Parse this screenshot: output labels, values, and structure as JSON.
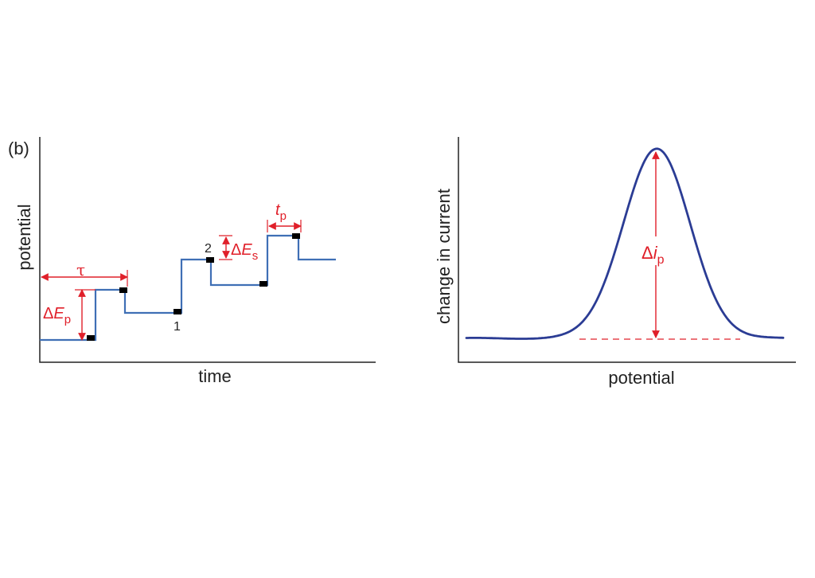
{
  "panel_label": "(b)",
  "colors": {
    "waveform": "#3f6fb5",
    "peak_curve": "#2b3c94",
    "annotation": "#e0202a",
    "axis": "#222222",
    "sample_marker": "#000000"
  },
  "left_plot": {
    "xlabel": "time",
    "ylabel": "potential",
    "sample_labels": [
      "1",
      "2"
    ],
    "annotations": {
      "tau": "τ",
      "delta_ep_symbol": "Δ",
      "delta_ep_var": "E",
      "delta_ep_sub": "p",
      "delta_es_symbol": "Δ",
      "delta_es_var": "E",
      "delta_es_sub": "s",
      "tp_var": "t",
      "tp_sub": "p"
    }
  },
  "right_plot": {
    "xlabel": "potential",
    "ylabel": "change in current",
    "annotations": {
      "delta_ip_symbol": "Δ",
      "delta_ip_var": "i",
      "delta_ip_sub": "p"
    }
  }
}
